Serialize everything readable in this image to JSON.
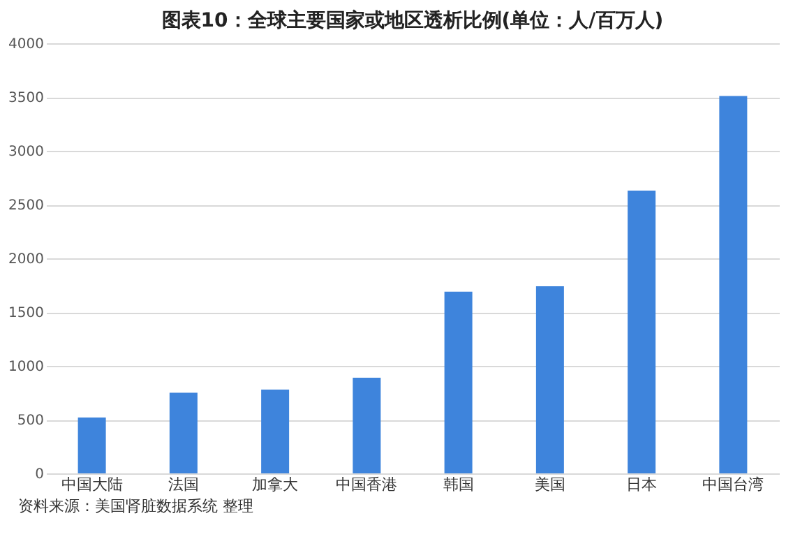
{
  "chart_data": {
    "type": "bar",
    "title": "图表10：全球主要国家或地区透析比例(单位：人/百万人)",
    "categories": [
      "中国大陆",
      "法国",
      "加拿大",
      "中国香港",
      "韩国",
      "美国",
      "日本",
      "中国台湾"
    ],
    "values": [
      520,
      750,
      780,
      890,
      1690,
      1740,
      2630,
      3510
    ],
    "color": "#3e84dc",
    "ylim": [
      0,
      4000
    ],
    "yticks": [
      0,
      500,
      1000,
      1500,
      2000,
      2500,
      3000,
      3500,
      4000
    ],
    "grid": "y",
    "annotations": [
      "资料来源：美国肾脏数据系统 整理"
    ]
  }
}
